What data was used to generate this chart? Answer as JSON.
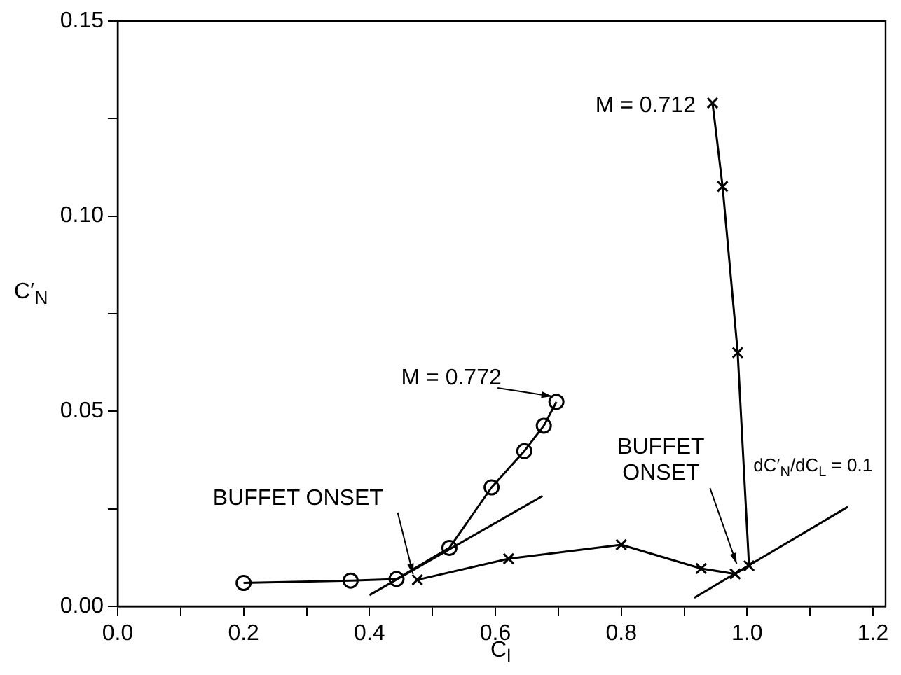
{
  "chart_data": {
    "type": "line",
    "xlabel": "C$_{l}$",
    "ylabel": "C′$_{N}$",
    "xlim": [
      0,
      1.22
    ],
    "ylim": [
      0,
      0.15
    ],
    "xticks": [
      {
        "value": 0,
        "label": "0.0"
      },
      {
        "value": 0.1,
        "label": null
      },
      {
        "value": 0.2,
        "label": "0.2"
      },
      {
        "value": 0.3,
        "label": null
      },
      {
        "value": 0.4,
        "label": "0.4"
      },
      {
        "value": 0.5,
        "label": null
      },
      {
        "value": 0.6,
        "label": "0.6"
      },
      {
        "value": 0.7,
        "label": null
      },
      {
        "value": 0.8,
        "label": "0.8"
      },
      {
        "value": 0.9,
        "label": null
      },
      {
        "value": 1.0,
        "label": "1.0"
      },
      {
        "value": 1.1,
        "label": null
      },
      {
        "value": 1.2,
        "label": "1.2"
      }
    ],
    "yticks": [
      {
        "value": 0,
        "label": "0.00"
      },
      {
        "value": 0.025,
        "label": null
      },
      {
        "value": 0.05,
        "label": "0.05"
      },
      {
        "value": 0.075,
        "label": null
      },
      {
        "value": 0.1,
        "label": "0.10"
      },
      {
        "value": 0.125,
        "label": null
      },
      {
        "value": 0.15,
        "label": "0.15"
      }
    ],
    "series": [
      {
        "color": "#000000",
        "marker": "circle",
        "x": [
          0.2,
          0.37,
          0.443,
          0.527,
          0.594,
          0.646,
          0.677,
          0.697
        ],
        "values": [
          0.006,
          0.0066,
          0.007,
          0.015,
          0.0305,
          0.0398,
          0.0463,
          0.0524
        ]
      },
      {
        "color": "#000000",
        "marker": "cross",
        "x": [
          0.476,
          0.621,
          0.8,
          0.927,
          0.981,
          1.003,
          0.985,
          0.961,
          0.945
        ],
        "values": [
          0.0068,
          0.0122,
          0.0158,
          0.0097,
          0.0083,
          0.0104,
          0.065,
          0.1076,
          0.129
        ]
      },
      {
        "color": "#000000",
        "marker": "none",
        "x": [
          0.4,
          0.675
        ],
        "values": [
          0.0029,
          0.0283
        ]
      },
      {
        "color": "#000000",
        "marker": "none",
        "x": [
          0.916,
          1.16
        ],
        "values": [
          0.0022,
          0.0255
        ]
      }
    ],
    "annotations": [
      {
        "text": "M = 0.712",
        "x": 0.945,
        "y": 0.129
      },
      {
        "text": "M = 0.772",
        "x": 0.697,
        "y": 0.0524
      },
      {
        "text": "BUFFET ONSET",
        "x": 0.476,
        "y": 0.0068
      },
      {
        "text": "BUFFET\nONSET",
        "x": 0.99,
        "y": 0.0095
      },
      "dC′$_{N}$/dC$_{L}$ = 0.1"
    ],
    "grid": false,
    "legend": false
  }
}
